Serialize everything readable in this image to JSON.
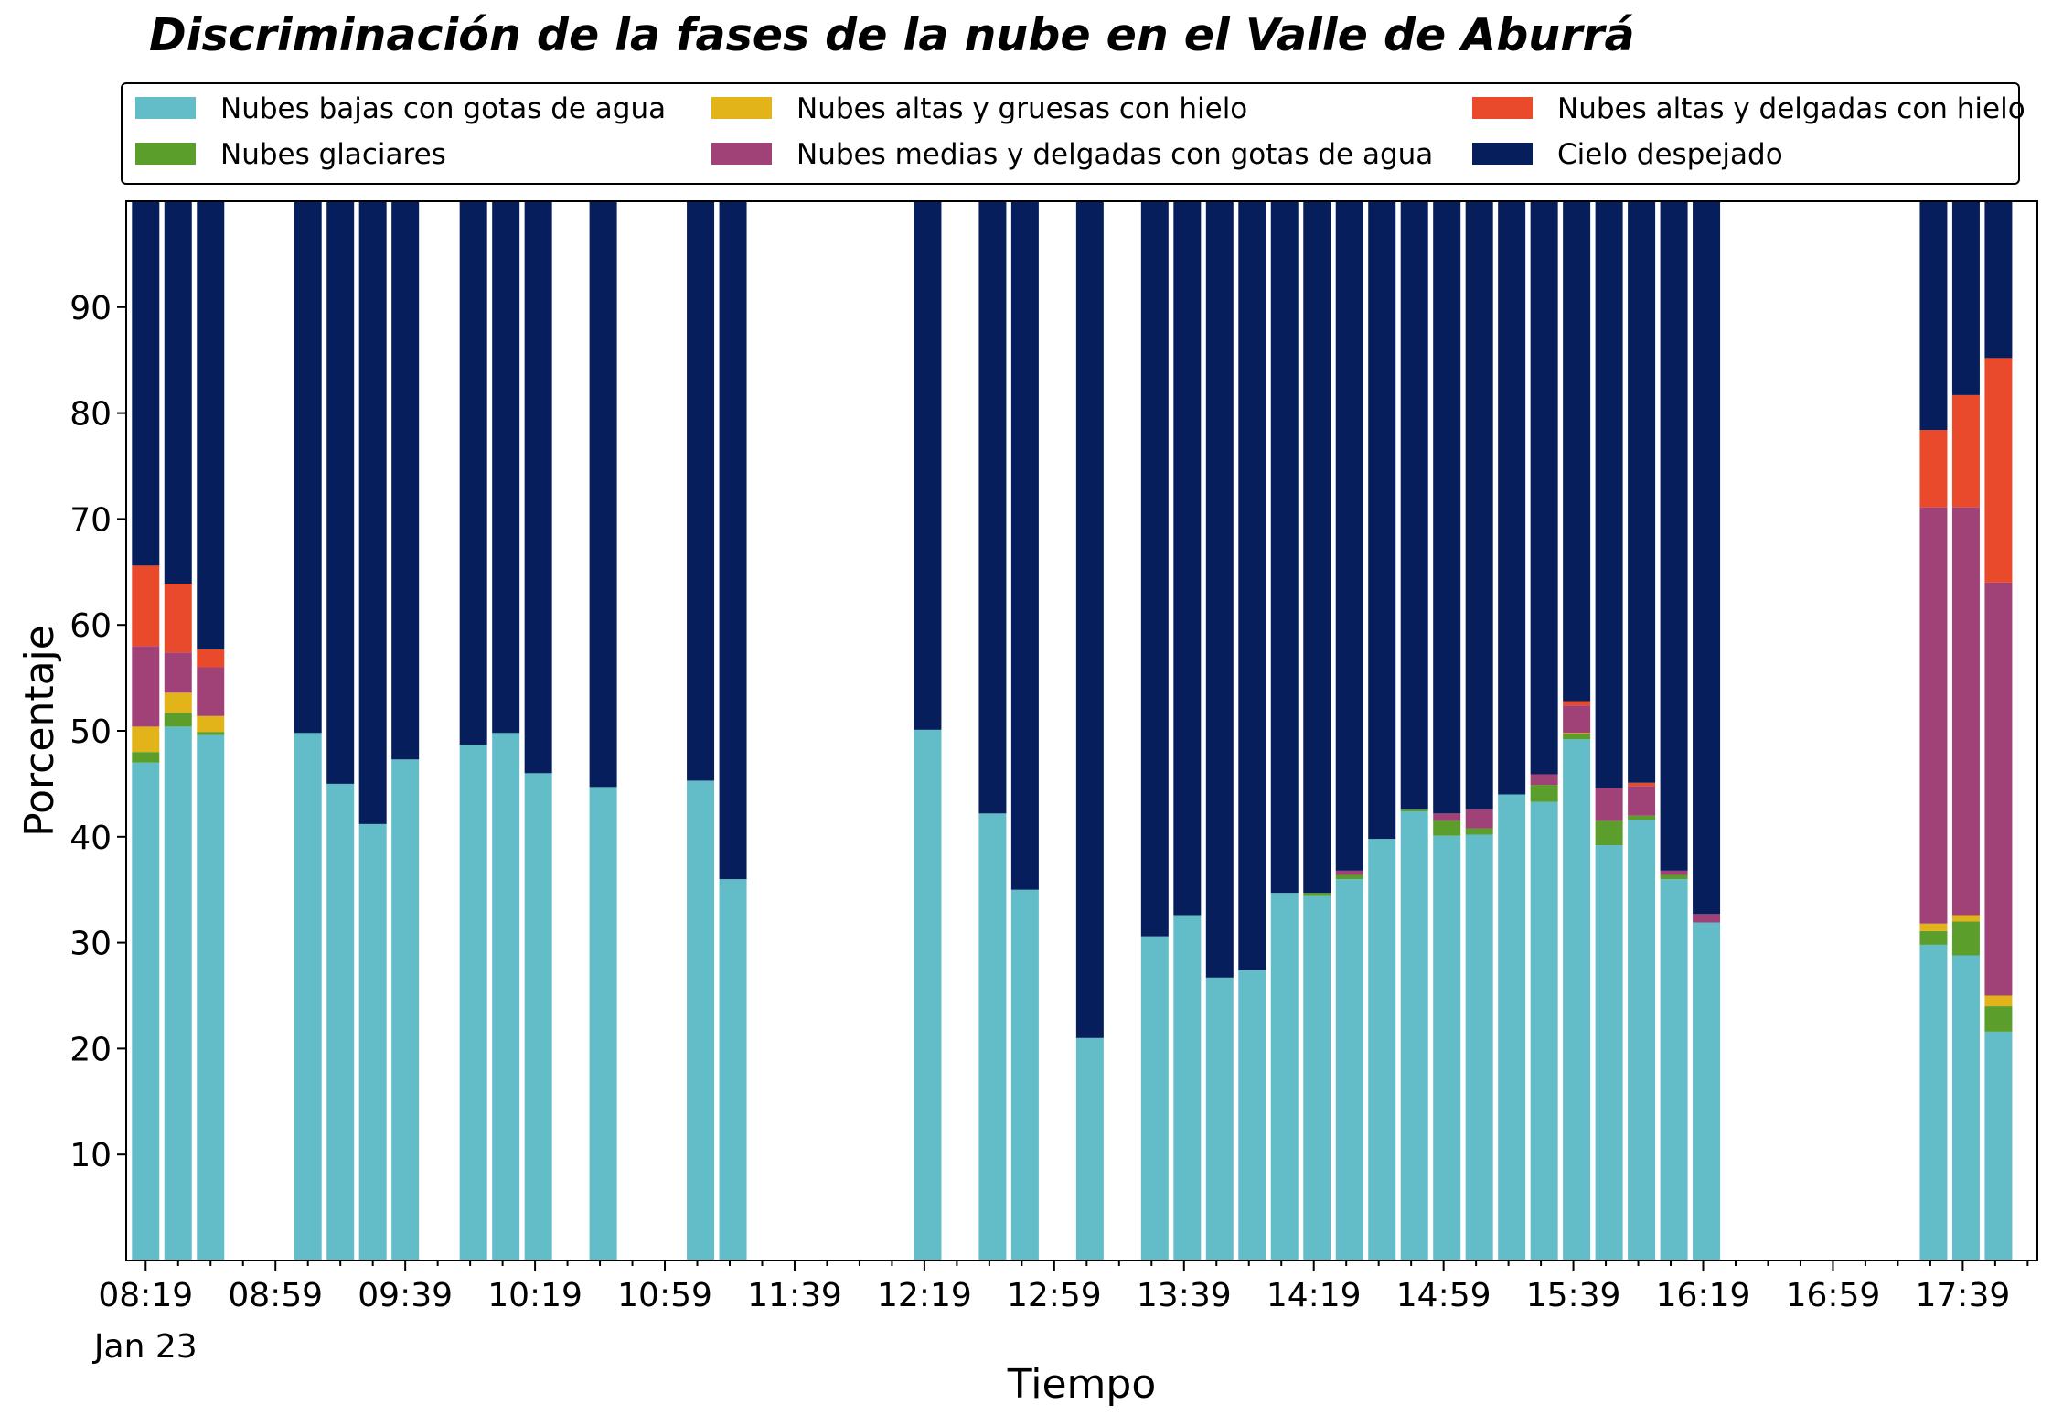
{
  "chart_data": {
    "type": "bar",
    "stacked": true,
    "title": "Discriminación de la fases de la nube en el Valle de Aburrá",
    "xlabel": "Tiempo",
    "ylabel": "Porcentaje",
    "ylim": [
      0,
      100
    ],
    "yticks": [
      10,
      20,
      30,
      40,
      50,
      60,
      70,
      80,
      90
    ],
    "x_range": [
      "08:13",
      "18:02"
    ],
    "xticks": [
      "08:19",
      "08:59",
      "09:39",
      "10:19",
      "10:59",
      "11:39",
      "12:19",
      "12:59",
      "13:39",
      "14:19",
      "14:59",
      "15:39",
      "16:19",
      "16:59",
      "17:39"
    ],
    "xtick_date": "Jan 23",
    "grid": false,
    "legend_position": "top",
    "x": [
      "08:19",
      "08:29",
      "08:39",
      "09:09",
      "09:19",
      "09:29",
      "09:39",
      "10:00",
      "10:10",
      "10:20",
      "10:40",
      "11:10",
      "11:20",
      "12:20",
      "12:40",
      "12:50",
      "13:10",
      "13:30",
      "13:40",
      "13:50",
      "14:00",
      "14:10",
      "14:20",
      "14:30",
      "14:40",
      "14:50",
      "15:00",
      "15:10",
      "15:20",
      "15:30",
      "15:40",
      "15:50",
      "16:00",
      "16:10",
      "16:20",
      "17:30",
      "17:40",
      "17:50"
    ],
    "series": [
      {
        "name": "Nubes bajas con gotas de agua",
        "color": "#63bdc8",
        "values": [
          47.0,
          50.4,
          49.6,
          49.8,
          45.0,
          41.2,
          47.3,
          48.7,
          49.8,
          46.0,
          44.7,
          45.3,
          36.0,
          50.1,
          42.2,
          35.0,
          21.0,
          30.6,
          32.6,
          26.7,
          27.4,
          34.7,
          34.4,
          36.0,
          39.8,
          42.4,
          40.1,
          40.2,
          44.0,
          43.3,
          49.2,
          39.2,
          41.6,
          36.0,
          31.9,
          29.8,
          28.8,
          21.6
        ]
      },
      {
        "name": "Nubes glaciares",
        "color": "#5b9e2b",
        "values": [
          1.0,
          1.3,
          0.3,
          0,
          0,
          0,
          0,
          0,
          0,
          0,
          0,
          0,
          0,
          0,
          0,
          0,
          0,
          0,
          0,
          0,
          0,
          0,
          0.3,
          0.4,
          0,
          0.2,
          1.4,
          0.6,
          0,
          1.6,
          0.5,
          2.3,
          0.4,
          0.4,
          0,
          1.3,
          3.2,
          2.4
        ]
      },
      {
        "name": "Nubes altas y gruesas con hielo",
        "color": "#e3b419",
        "values": [
          2.4,
          1.9,
          1.5,
          0,
          0,
          0,
          0,
          0,
          0,
          0,
          0,
          0,
          0,
          0,
          0,
          0,
          0,
          0,
          0,
          0,
          0,
          0,
          0,
          0,
          0,
          0,
          0,
          0,
          0,
          0,
          0.1,
          0,
          0,
          0,
          0,
          0.7,
          0.6,
          1.0
        ]
      },
      {
        "name": "Nubes medias y delgadas con gotas de agua",
        "color": "#a04278",
        "values": [
          7.6,
          3.8,
          4.6,
          0,
          0,
          0,
          0,
          0,
          0,
          0,
          0,
          0,
          0,
          0,
          0,
          0,
          0,
          0,
          0,
          0,
          0,
          0,
          0,
          0.4,
          0,
          0,
          0.7,
          1.8,
          0,
          1.0,
          2.6,
          3.1,
          2.8,
          0.4,
          0.8,
          39.3,
          38.5,
          39.0
        ]
      },
      {
        "name": "Nubes altas y delgadas con hielo",
        "color": "#e94a2b",
        "values": [
          7.6,
          6.5,
          1.7,
          0,
          0,
          0,
          0,
          0,
          0,
          0,
          0,
          0,
          0,
          0,
          0,
          0,
          0,
          0,
          0,
          0,
          0,
          0,
          0,
          0,
          0,
          0,
          0,
          0,
          0,
          0,
          0.4,
          0,
          0.3,
          0,
          0,
          7.3,
          10.6,
          21.2
        ]
      },
      {
        "name": "Cielo despejado",
        "color": "#061f5c",
        "values": [
          34.4,
          36.1,
          42.3,
          50.2,
          55.0,
          58.8,
          52.7,
          51.3,
          50.2,
          54.0,
          55.3,
          54.7,
          64.0,
          49.9,
          57.8,
          65.0,
          79.0,
          69.4,
          67.4,
          73.3,
          72.6,
          65.3,
          65.3,
          63.2,
          60.2,
          57.4,
          57.8,
          57.4,
          56.0,
          54.1,
          47.2,
          55.4,
          54.9,
          63.2,
          67.3,
          21.6,
          18.3,
          14.8
        ]
      }
    ]
  }
}
